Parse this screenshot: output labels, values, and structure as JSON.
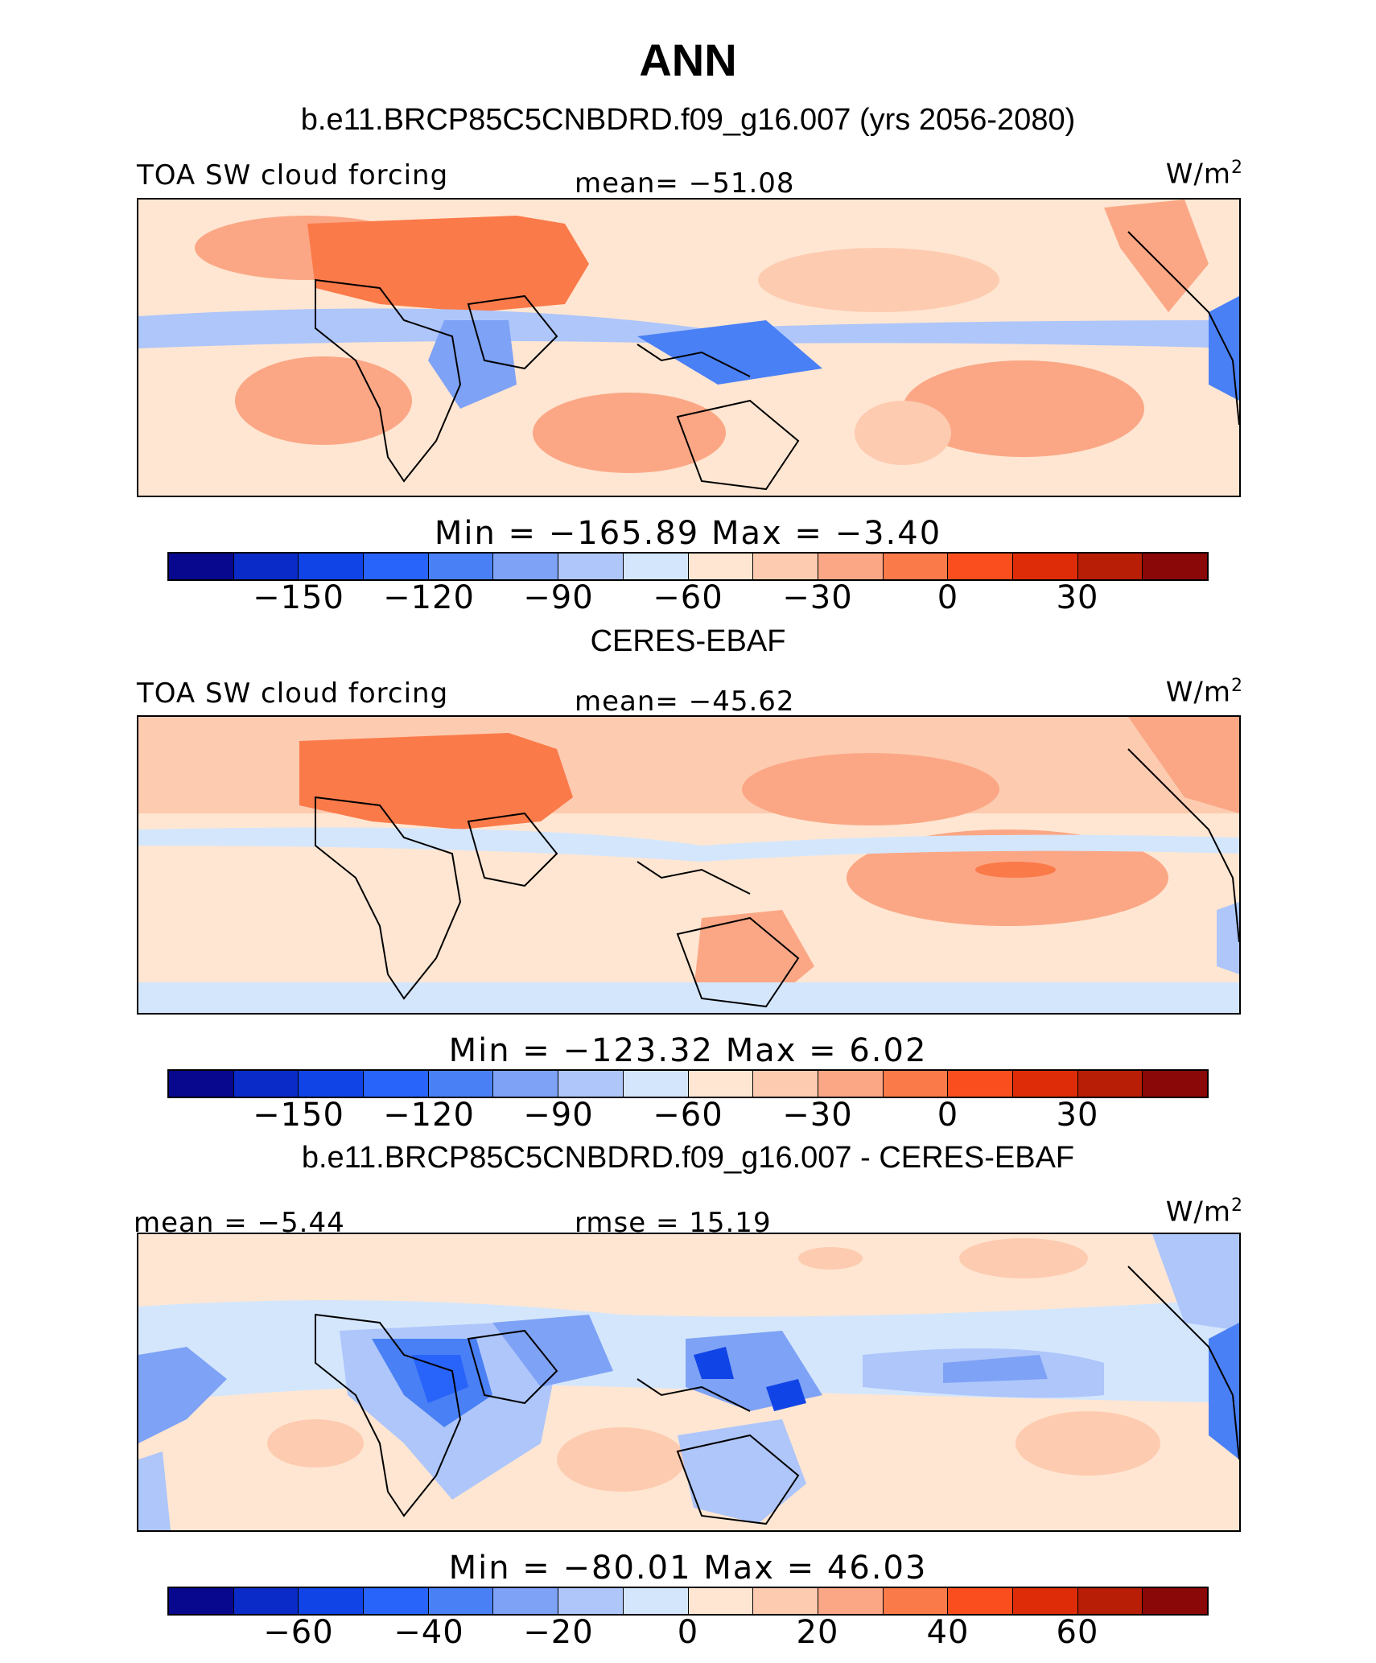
{
  "title": "ANN",
  "palette": [
    "#08088e",
    "#0b2bc8",
    "#1144e6",
    "#2863fa",
    "#4a80f5",
    "#7ea2f5",
    "#aec6fa",
    "#d4e6fc",
    "#ffe6d2",
    "#fdcbb0",
    "#fba785",
    "#fb7a4a",
    "#fb4e1e",
    "#de2c08",
    "#b81d05",
    "#8b0808"
  ],
  "panels": [
    {
      "title": "b.e11.BRCP85C5CNBDRD.f09_g16.007 (yrs 2056-2080)",
      "left_label": "TOA SW cloud forcing",
      "center_label": "mean= −51.08",
      "unit": "W/m",
      "unit_sup": "2",
      "minmax": "Min = −165.89  Max =  −3.40",
      "ticks": [
        "−150",
        "−120",
        "−90",
        "−60",
        "−30",
        "0",
        "30"
      ]
    },
    {
      "title": "CERES-EBAF",
      "left_label": "TOA SW cloud forcing",
      "center_label": "mean= −45.62",
      "unit": "W/m",
      "unit_sup": "2",
      "minmax": "Min = −123.32  Max =    6.02",
      "ticks": [
        "−150",
        "−120",
        "−90",
        "−60",
        "−30",
        "0",
        "30"
      ]
    },
    {
      "title": "b.e11.BRCP85C5CNBDRD.f09_g16.007 - CERES-EBAF",
      "left_label": "mean =  −5.44",
      "center_label": "rmse =  15.19",
      "unit": "W/m",
      "unit_sup": "2",
      "minmax": "Min = −80.01  Max =  46.03",
      "ticks": [
        "−60",
        "−40",
        "−20",
        "0",
        "20",
        "40",
        "60"
      ]
    }
  ]
}
